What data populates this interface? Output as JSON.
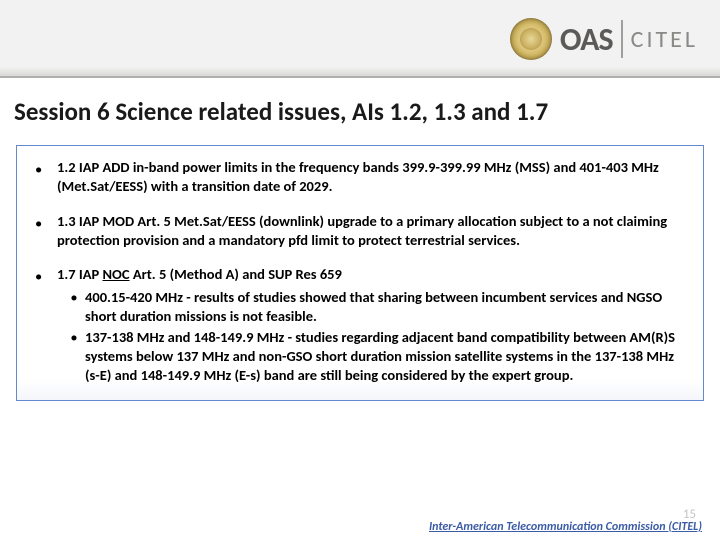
{
  "header": {
    "org_short": "OAS",
    "org_unit": "CITEL"
  },
  "title": "Session 6 Science related issues, AIs 1.2, 1.3 and 1.7",
  "bullets": [
    {
      "lead": "1.2 IAP ADD in-band power limits in the frequency bands 399.9-399.99 MHz (MSS) and 401-403 MHz (Met.Sat/EESS) with a transition date of 2029."
    },
    {
      "lead": "1.3 IAP MOD Art. 5 Met.Sat/EESS (downlink) upgrade to a primary allocation subject to a not claiming protection provision and a mandatory pfd limit to protect terrestrial services."
    },
    {
      "lead_prefix": "1.7 IAP ",
      "lead_underline": "NOC",
      "lead_suffix": " Art. 5 (Method A) and SUP Res 659",
      "subs": [
        "400.15-420 MHz - results of studies showed that sharing between incumbent services and NGSO short duration missions is not feasible.",
        "137-138 MHz and 148-149.9 MHz - studies regarding adjacent band compatibility between AM(R)S systems below 137 MHz and non-GSO short duration mission satellite systems in the 137-138 MHz (s-E) and 148-149.9 MHz (E-s) band are still being considered by the expert group."
      ]
    }
  ],
  "footer": {
    "page": "15",
    "org": "Inter-American Telecommunication Commission (CITEL)"
  }
}
